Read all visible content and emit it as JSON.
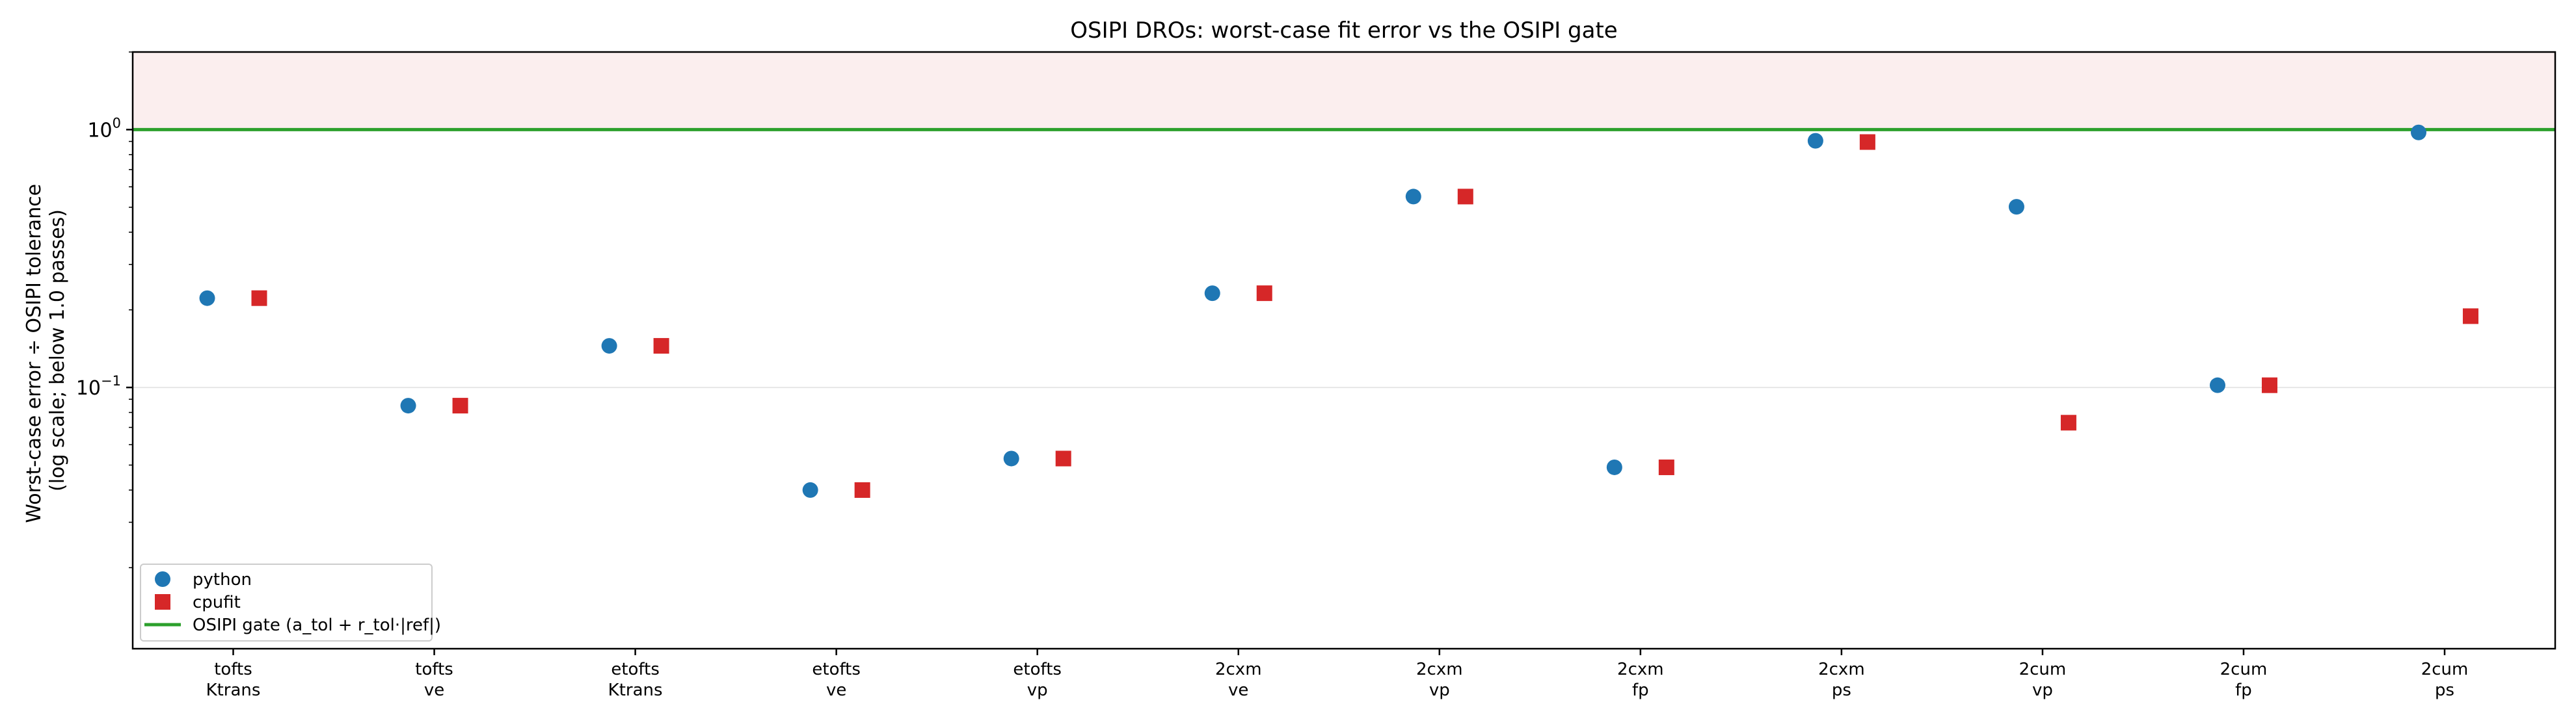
{
  "chart_data": {
    "type": "scatter",
    "title": "OSIPI DROs: worst-case fit error vs the OSIPI gate",
    "ylabel_lines": [
      "Worst-case error ÷ OSIPI tolerance",
      "(log scale; below 1.0 passes)"
    ],
    "xlabel": "",
    "y_scale": "log",
    "ylim": [
      0.0097,
      2.0
    ],
    "categories": [
      [
        "tofts",
        "Ktrans"
      ],
      [
        "tofts",
        "ve"
      ],
      [
        "etofts",
        "Ktrans"
      ],
      [
        "etofts",
        "ve"
      ],
      [
        "etofts",
        "vp"
      ],
      [
        "2cxm",
        "ve"
      ],
      [
        "2cxm",
        "vp"
      ],
      [
        "2cxm",
        "fp"
      ],
      [
        "2cxm",
        "ps"
      ],
      [
        "2cum",
        "vp"
      ],
      [
        "2cum",
        "fp"
      ],
      [
        "2cum",
        "ps"
      ]
    ],
    "y_ticks": [
      {
        "value": 1.0,
        "base": "10",
        "exp": "0"
      },
      {
        "value": 0.1,
        "base": "10",
        "exp": "−1"
      }
    ],
    "series": [
      {
        "name": "python",
        "marker": "circle",
        "color": "#1f77b4",
        "values": [
          0.222,
          0.085,
          0.145,
          0.04,
          0.053,
          0.232,
          0.55,
          0.049,
          0.905,
          0.502,
          0.102,
          0.975
        ]
      },
      {
        "name": "cpufit",
        "marker": "square",
        "color": "#d62728",
        "values": [
          0.222,
          0.085,
          0.145,
          0.04,
          0.053,
          0.232,
          0.55,
          0.049,
          0.895,
          0.073,
          0.102,
          0.189
        ]
      }
    ],
    "gate": {
      "name": "OSIPI gate (a_tol + r_tol·|ref|)",
      "value": 1.0,
      "color": "#2ca02c",
      "fail_region_color": "#fbeeee"
    },
    "grid": "y-major",
    "legend_position": "lower-left"
  }
}
